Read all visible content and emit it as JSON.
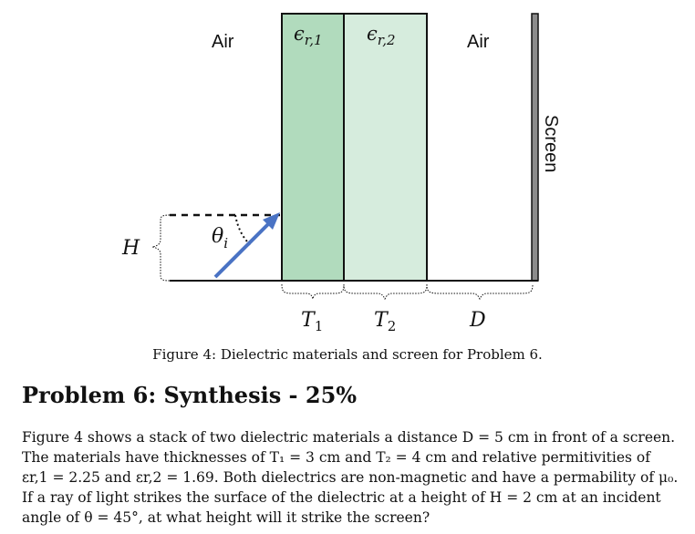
{
  "figure": {
    "labels": {
      "air_left": "Air",
      "air_right": "Air",
      "eps1": "εr,1",
      "eps2": "εr,2",
      "screen": "Screen",
      "theta": "θi",
      "H": "H",
      "T1": "T1",
      "T2": "T2",
      "D": "D"
    },
    "colors": {
      "dielectric1": "#b1dbbd",
      "dielectric2": "#d6ecdd",
      "ray": "#4a73c4",
      "screen": "#8c8c8c"
    },
    "caption": "Figure 4: Dielectric materials and screen for Problem 6."
  },
  "problem": {
    "title": "Problem 6: Synthesis - 25%",
    "lines": [
      "Figure 4 shows a stack of two dielectric materials a distance D = 5 cm in front of a screen.",
      "The materials have thicknesses of T₁ = 3 cm and T₂ = 4 cm and relative permitivities of",
      "εr,1 = 2.25 and εr,2 = 1.69. Both dielectrics are non-magnetic and have a permability of μ₀.",
      "If a ray of light strikes the surface of the dielectric at a height of H = 2 cm at an incident",
      "angle of θ = 45°, at what height will it strike the screen?"
    ]
  }
}
